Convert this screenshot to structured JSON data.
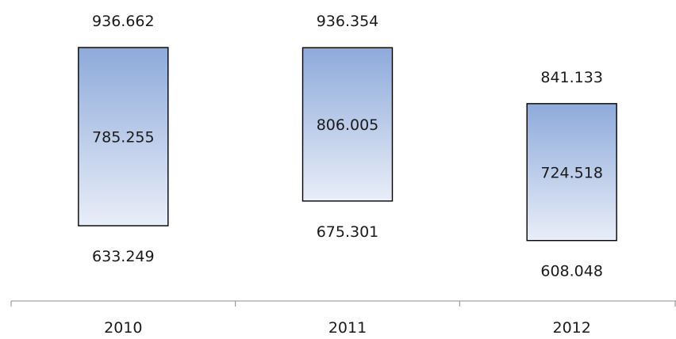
{
  "chart_data": {
    "type": "bar",
    "subtype": "floating-range",
    "categories": [
      "2010",
      "2011",
      "2012"
    ],
    "series": [
      {
        "high": [
          936.662,
          936.354,
          841.133
        ],
        "mid": [
          785.255,
          806.005,
          724.518
        ],
        "low": [
          633.249,
          675.301,
          608.048
        ]
      }
    ],
    "title": "",
    "xlabel": "",
    "ylabel": "",
    "grid": false,
    "legend": "none",
    "colors": {
      "bar_top": "#8eaadb",
      "bar_bottom": "#e9eef8",
      "bar_stroke": "#000000",
      "axis": "#8c8c8c"
    }
  }
}
